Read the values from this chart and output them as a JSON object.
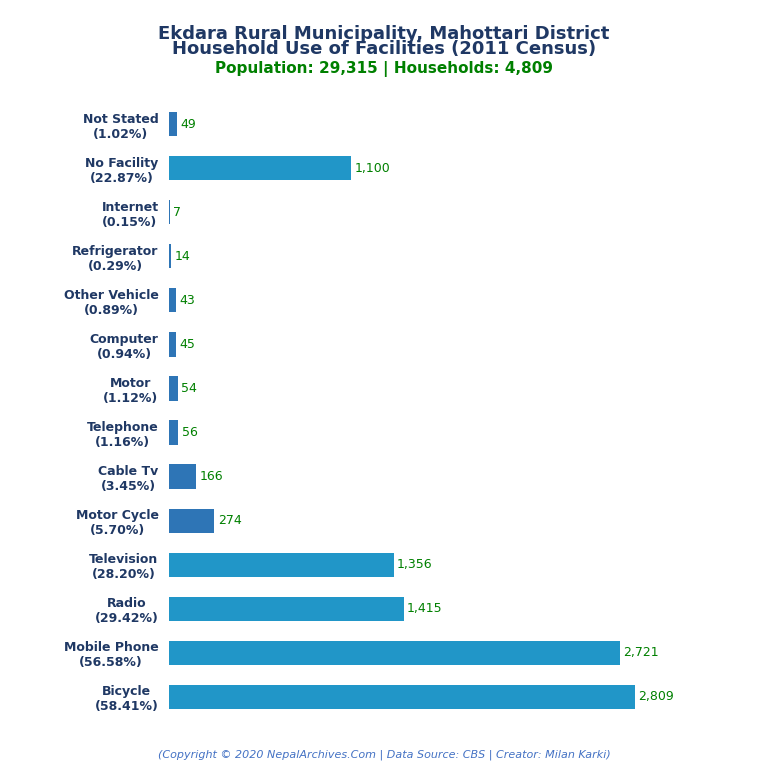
{
  "title_line1": "Ekdara Rural Municipality, Mahottari District",
  "title_line2": "Household Use of Facilities (2011 Census)",
  "subtitle": "Population: 29,315 | Households: 4,809",
  "footer": "(Copyright © 2020 NepalArchives.Com | Data Source: CBS | Creator: Milan Karki)",
  "categories": [
    "Not Stated\n(1.02%)",
    "No Facility\n(22.87%)",
    "Internet\n(0.15%)",
    "Refrigerator\n(0.29%)",
    "Other Vehicle\n(0.89%)",
    "Computer\n(0.94%)",
    "Motor\n(1.12%)",
    "Telephone\n(1.16%)",
    "Cable Tv\n(3.45%)",
    "Motor Cycle\n(5.70%)",
    "Television\n(28.20%)",
    "Radio\n(29.42%)",
    "Mobile Phone\n(56.58%)",
    "Bicycle\n(58.41%)"
  ],
  "values": [
    49,
    1100,
    7,
    14,
    43,
    45,
    54,
    56,
    166,
    274,
    1356,
    1415,
    2721,
    2809
  ],
  "bar_color_dark": "#2e75b6",
  "bar_color_light": "#2196c8",
  "title_color": "#1f3864",
  "subtitle_color": "#008000",
  "value_color": "#008000",
  "footer_color": "#4472c4",
  "background_color": "#ffffff",
  "xlim": [
    0,
    3150
  ]
}
